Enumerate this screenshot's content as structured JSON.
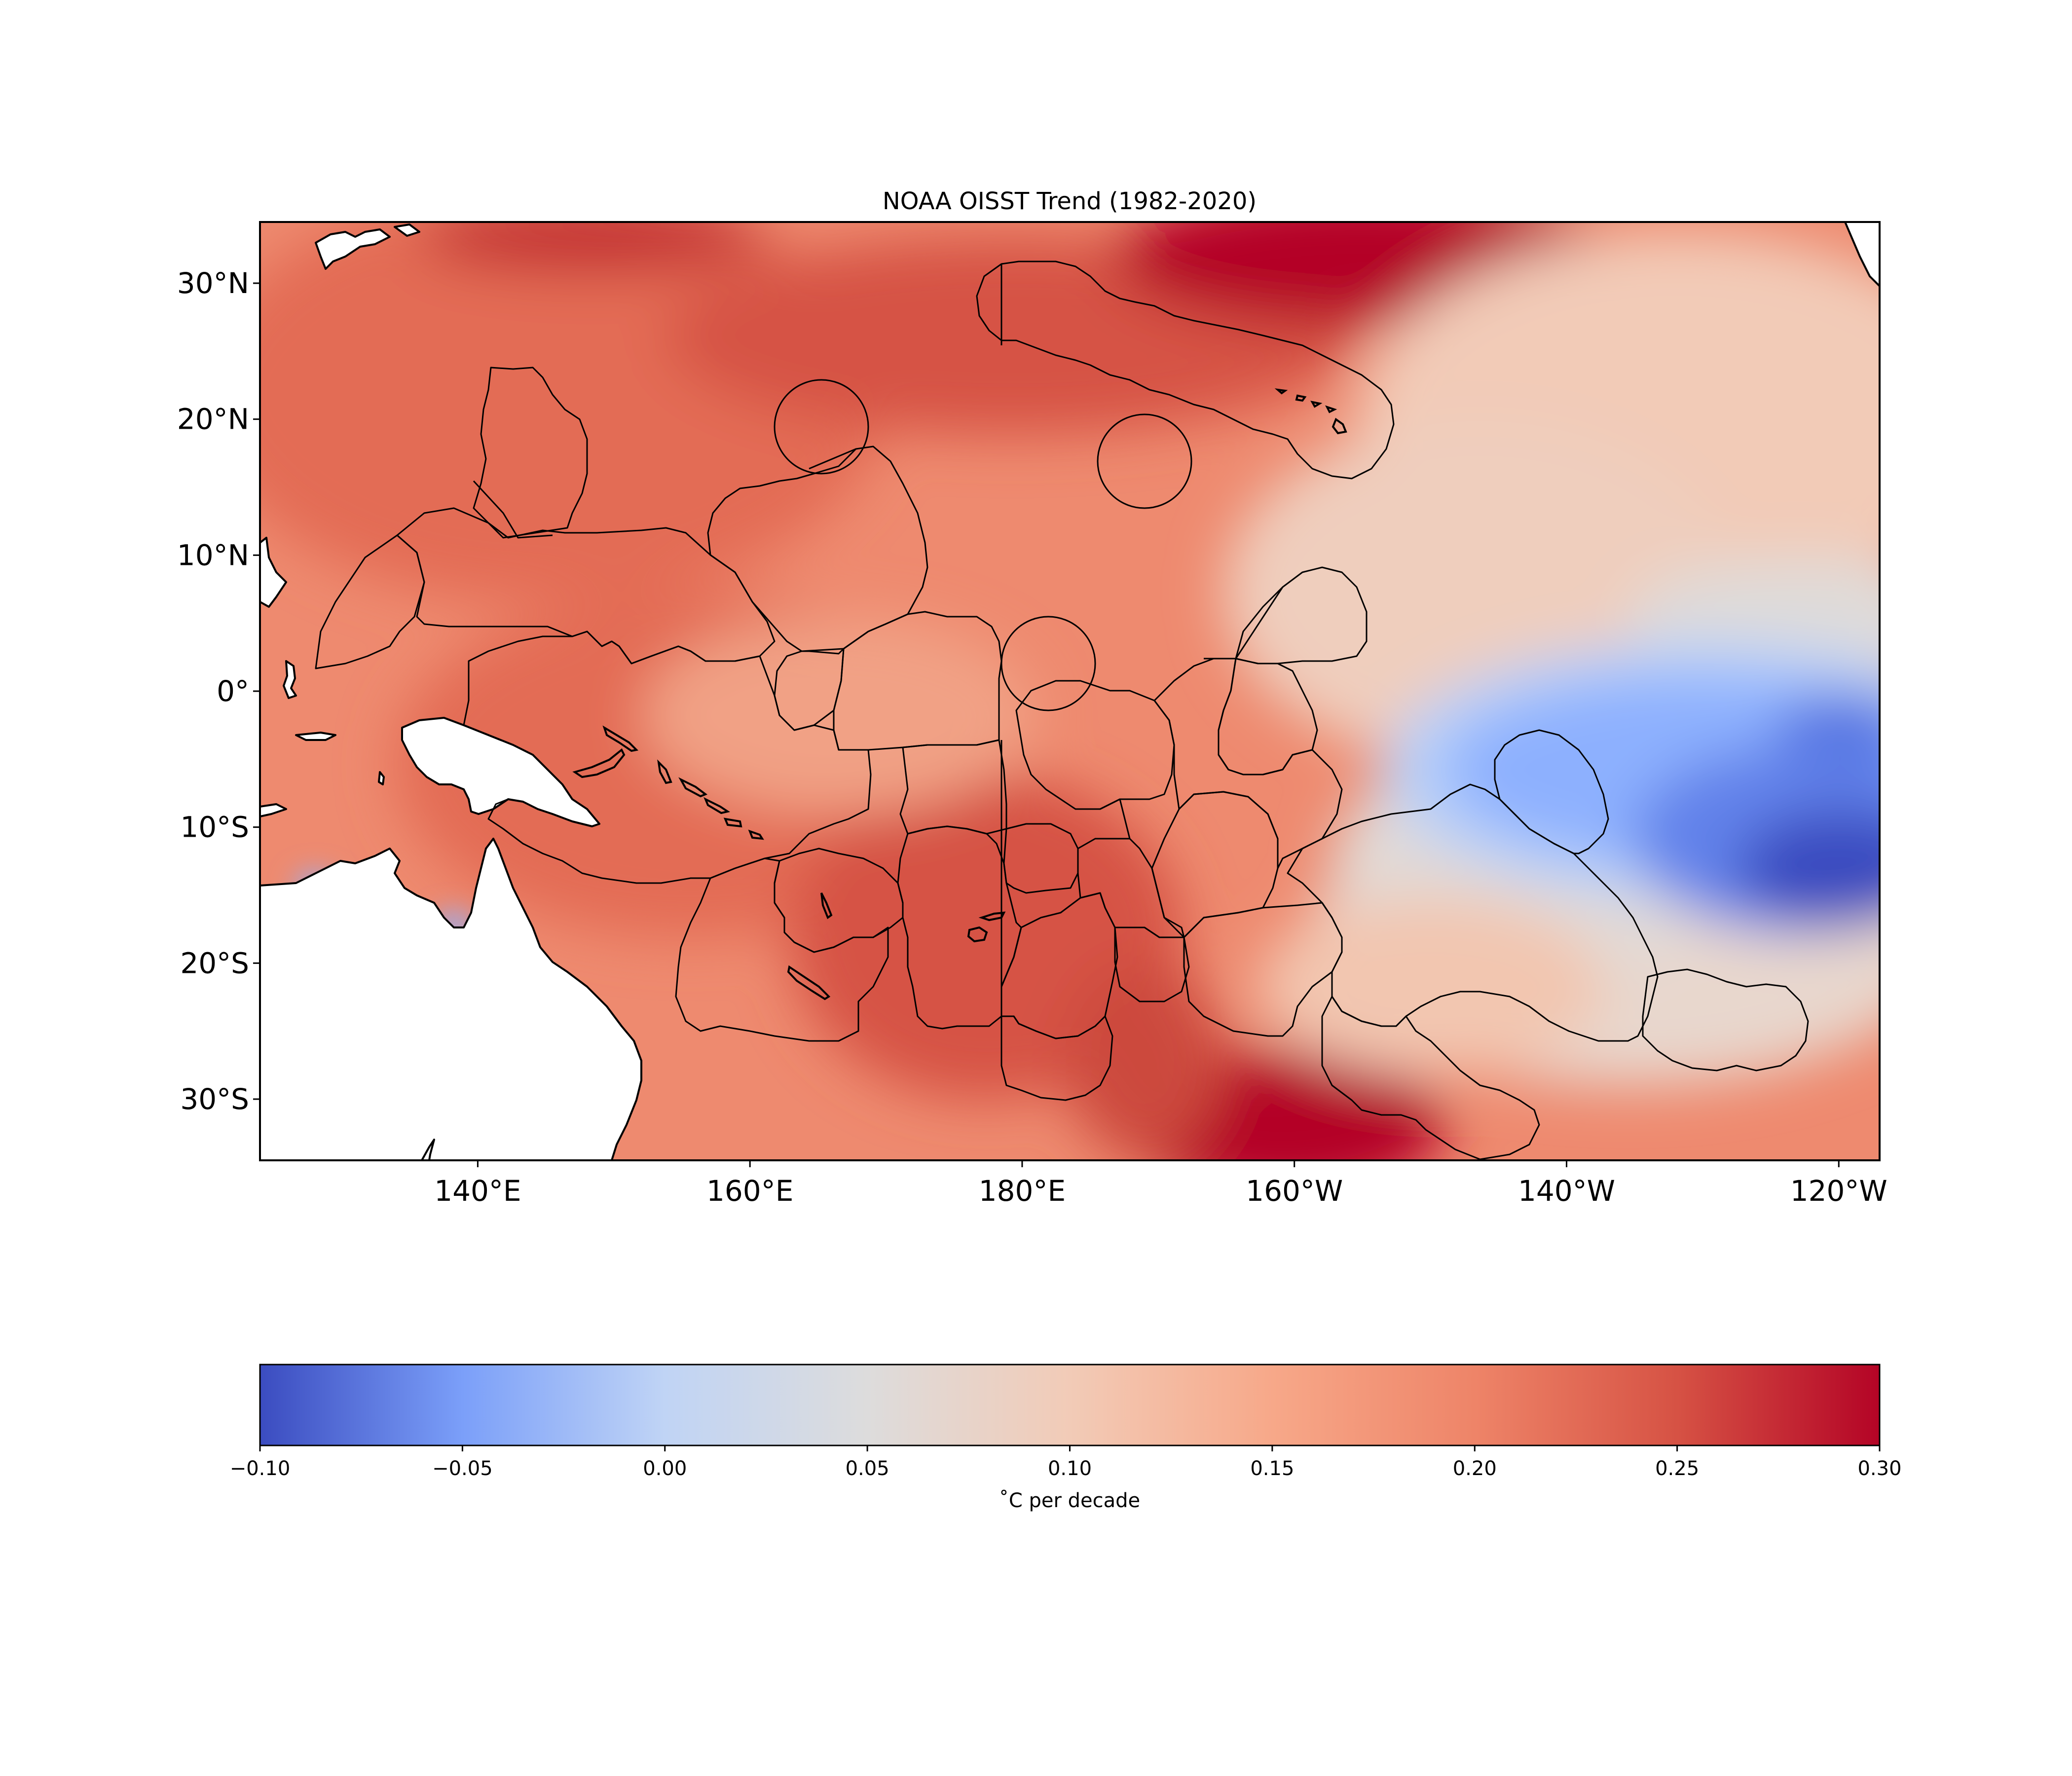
{
  "title": "NOAA OISST Trend (1982-2020)",
  "map": {
    "extent": {
      "lon_min": 124,
      "lon_max": 243,
      "lat_min": -34.5,
      "lat_max": 34.5
    },
    "lon_ticks": [
      {
        "value": 140,
        "label": "140°E"
      },
      {
        "value": 160,
        "label": "160°E"
      },
      {
        "value": 180,
        "label": "180°E"
      },
      {
        "value": 200,
        "label": "160°W"
      },
      {
        "value": 220,
        "label": "140°W"
      },
      {
        "value": 240,
        "label": "120°W"
      }
    ],
    "lat_ticks": [
      {
        "value": 30,
        "label": "30°N"
      },
      {
        "value": 20,
        "label": "20°N"
      },
      {
        "value": 10,
        "label": "10°N"
      },
      {
        "value": 0,
        "label": "0°"
      },
      {
        "value": -10,
        "label": "10°S"
      },
      {
        "value": -20,
        "label": "20°S"
      },
      {
        "value": -30,
        "label": "30°S"
      }
    ]
  },
  "colorbar": {
    "label": "˚C per decade",
    "vmin": -0.1,
    "vmax": 0.3,
    "colormap": "coolwarm",
    "ticks": [
      {
        "value": -0.1,
        "label": "−0.10"
      },
      {
        "value": -0.05,
        "label": "−0.05"
      },
      {
        "value": 0.0,
        "label": "0.00"
      },
      {
        "value": 0.05,
        "label": "0.05"
      },
      {
        "value": 0.1,
        "label": "0.10"
      },
      {
        "value": 0.15,
        "label": "0.15"
      },
      {
        "value": 0.2,
        "label": "0.20"
      },
      {
        "value": 0.25,
        "label": "0.25"
      },
      {
        "value": 0.3,
        "label": "0.30"
      }
    ],
    "colors": [
      "#3b4cc0",
      "#7b9ff9",
      "#c0d4f5",
      "#dddcdc",
      "#f2cbb7",
      "#ee8468",
      "#b40426"
    ]
  }
}
